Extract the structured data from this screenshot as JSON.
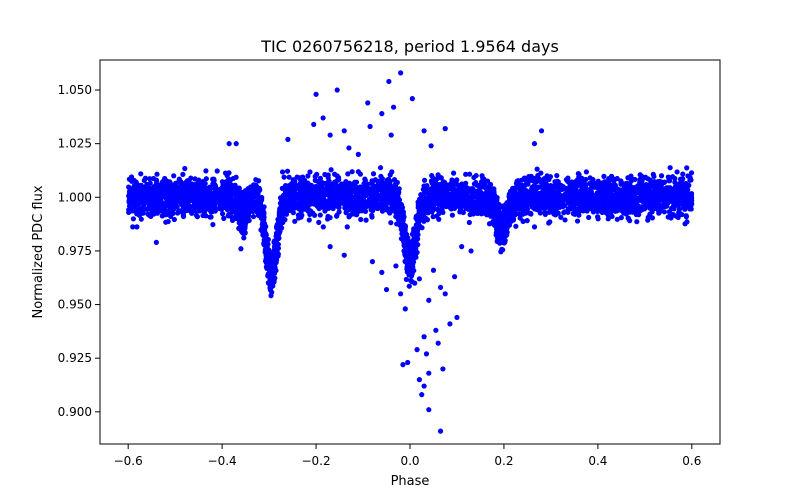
{
  "chart_data": {
    "type": "scatter",
    "title": "TIC 0260756218, period 1.9564 days",
    "xlabel": "Phase",
    "ylabel": "Normalized PDC flux",
    "xlim": [
      -0.66,
      0.66
    ],
    "ylim": [
      0.885,
      1.064
    ],
    "xticks": [
      -0.6,
      -0.4,
      -0.2,
      0.0,
      0.2,
      0.4,
      0.6
    ],
    "xtick_labels": [
      "−0.6",
      "−0.4",
      "−0.2",
      "0.0",
      "0.2",
      "0.4",
      "0.6"
    ],
    "yticks": [
      0.9,
      0.925,
      0.95,
      0.975,
      1.0,
      1.025,
      1.05
    ],
    "ytick_labels": [
      "0.900",
      "0.925",
      "0.950",
      "0.975",
      "1.000",
      "1.025",
      "1.050"
    ],
    "marker_color": "#0000ff",
    "grid": false,
    "baseline": {
      "x_range": [
        -0.6,
        0.6
      ],
      "center": 1.0,
      "scatter": 0.006
    },
    "dips": [
      {
        "phase": -0.295,
        "depth": 0.035,
        "width": 0.012
      },
      {
        "phase": 0.0,
        "depth": 0.03,
        "width": 0.012
      },
      {
        "phase": 0.195,
        "depth": 0.015,
        "width": 0.012
      },
      {
        "phase": -0.355,
        "depth": 0.008,
        "width": 0.008
      }
    ],
    "outliers": [
      {
        "x": -0.02,
        "y": 1.058
      },
      {
        "x": -0.045,
        "y": 1.054
      },
      {
        "x": -0.2,
        "y": 1.048
      },
      {
        "x": -0.155,
        "y": 1.05
      },
      {
        "x": -0.09,
        "y": 1.044
      },
      {
        "x": -0.035,
        "y": 1.042
      },
      {
        "x": 0.005,
        "y": 1.046
      },
      {
        "x": -0.06,
        "y": 1.039
      },
      {
        "x": -0.185,
        "y": 1.037
      },
      {
        "x": -0.14,
        "y": 1.031
      },
      {
        "x": -0.085,
        "y": 1.033
      },
      {
        "x": -0.04,
        "y": 1.029
      },
      {
        "x": 0.03,
        "y": 1.031
      },
      {
        "x": 0.075,
        "y": 1.032
      },
      {
        "x": -0.17,
        "y": 1.029
      },
      {
        "x": -0.13,
        "y": 1.023
      },
      {
        "x": -0.26,
        "y": 1.027
      },
      {
        "x": 0.28,
        "y": 1.031
      },
      {
        "x": 0.265,
        "y": 1.025
      },
      {
        "x": -0.205,
        "y": 1.034
      },
      {
        "x": -0.11,
        "y": 1.02
      },
      {
        "x": 0.045,
        "y": 1.024
      },
      {
        "x": -0.385,
        "y": 1.025
      },
      {
        "x": -0.37,
        "y": 1.025
      },
      {
        "x": 0.05,
        "y": 0.966
      },
      {
        "x": 0.02,
        "y": 0.962
      },
      {
        "x": 0.065,
        "y": 0.958
      },
      {
        "x": 0.095,
        "y": 0.963
      },
      {
        "x": 0.04,
        "y": 0.952
      },
      {
        "x": 0.075,
        "y": 0.955
      },
      {
        "x": -0.01,
        "y": 0.948
      },
      {
        "x": 0.085,
        "y": 0.941
      },
      {
        "x": 0.1,
        "y": 0.944
      },
      {
        "x": 0.055,
        "y": 0.938
      },
      {
        "x": 0.03,
        "y": 0.935
      },
      {
        "x": 0.06,
        "y": 0.932
      },
      {
        "x": 0.015,
        "y": 0.929
      },
      {
        "x": 0.035,
        "y": 0.927
      },
      {
        "x": -0.005,
        "y": 0.923
      },
      {
        "x": -0.015,
        "y": 0.922
      },
      {
        "x": 0.07,
        "y": 0.92
      },
      {
        "x": 0.02,
        "y": 0.915
      },
      {
        "x": 0.04,
        "y": 0.918
      },
      {
        "x": 0.03,
        "y": 0.912
      },
      {
        "x": 0.025,
        "y": 0.908
      },
      {
        "x": 0.04,
        "y": 0.901
      },
      {
        "x": 0.065,
        "y": 0.891
      },
      {
        "x": -0.03,
        "y": 0.968
      },
      {
        "x": -0.06,
        "y": 0.965
      },
      {
        "x": -0.08,
        "y": 0.97
      },
      {
        "x": -0.14,
        "y": 0.973
      },
      {
        "x": -0.17,
        "y": 0.977
      },
      {
        "x": -0.36,
        "y": 0.976
      },
      {
        "x": 0.11,
        "y": 0.977
      },
      {
        "x": 0.13,
        "y": 0.975
      },
      {
        "x": -0.54,
        "y": 0.979
      },
      {
        "x": -0.05,
        "y": 0.957
      },
      {
        "x": 0.01,
        "y": 0.96
      },
      {
        "x": -0.02,
        "y": 0.955
      }
    ]
  }
}
